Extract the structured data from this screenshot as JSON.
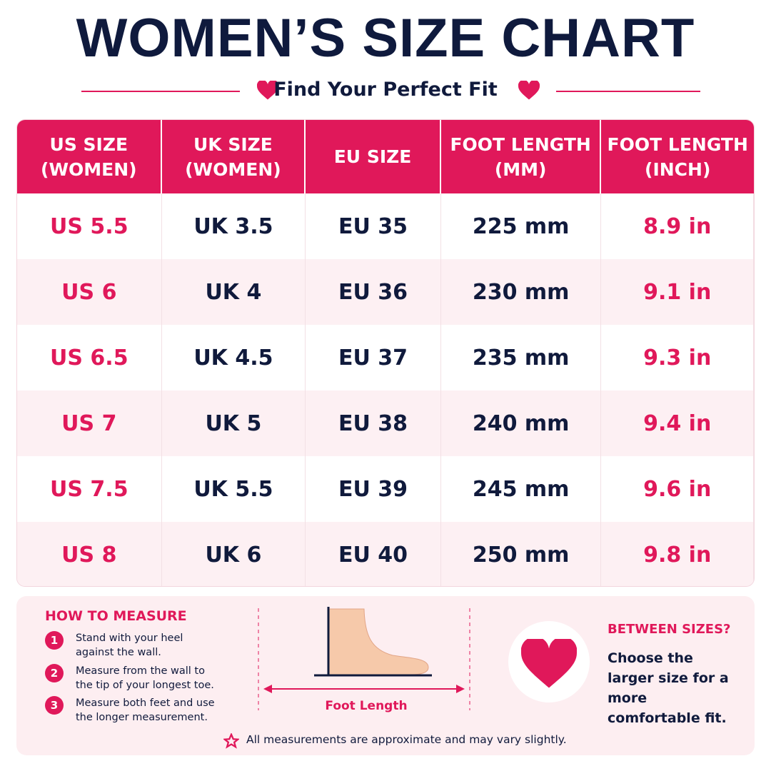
{
  "header": {
    "title": "WOMEN’S SIZE CHART",
    "subtitle": "Find Your Perfect Fit"
  },
  "table": {
    "columns": [
      "US SIZE\n(WOMEN)",
      "UK SIZE\n(WOMEN)",
      "EU SIZE",
      "FOOT LENGTH\n(MM)",
      "FOOT LENGTH\n(INCH)"
    ],
    "rows": [
      [
        "US 5.5",
        "UK 3.5",
        "EU 35",
        "225 mm",
        "8.9 in"
      ],
      [
        "US 6",
        "UK 4",
        "EU 36",
        "230 mm",
        "9.1 in"
      ],
      [
        "US 6.5",
        "UK 4.5",
        "EU 37",
        "235 mm",
        "9.3 in"
      ],
      [
        "US 7",
        "UK 5",
        "EU 38",
        "240 mm",
        "9.4 in"
      ],
      [
        "US 7.5",
        "UK 5.5",
        "EU 39",
        "245 mm",
        "9.6 in"
      ],
      [
        "US 8",
        "UK 6",
        "EU 40",
        "250 mm",
        "9.8 in"
      ]
    ]
  },
  "measure": {
    "title": "HOW TO MEASURE",
    "steps": [
      {
        "number": "1",
        "text": "Stand with your heel against the wall."
      },
      {
        "number": "2",
        "text": "Measure from the wall to the tip of your longest toe."
      },
      {
        "number": "3",
        "text": "Measure both feet and use the longer measurement."
      }
    ]
  },
  "illustration": {
    "label": "Foot Length"
  },
  "between": {
    "title": "BETWEEN SIZES?",
    "text": "Choose the larger size for a more comfortable fit."
  },
  "note": "All measurements are approximate and may vary slightly."
}
